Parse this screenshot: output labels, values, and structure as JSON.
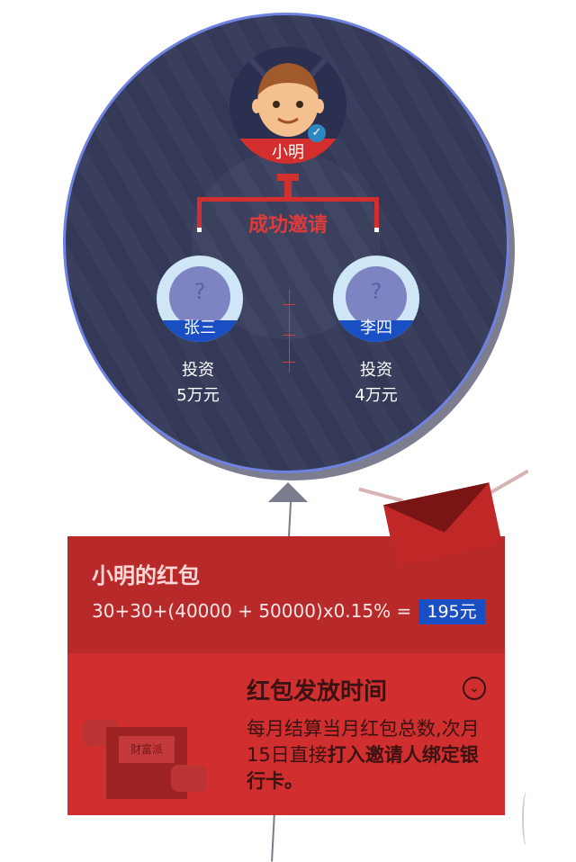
{
  "referrer": {
    "name": "小明"
  },
  "connector_label": "成功邀请",
  "friends": [
    {
      "name": "张三",
      "placeholder": "?",
      "invest_label": "投资",
      "invest_amount": "5万元"
    },
    {
      "name": "李四",
      "placeholder": "?",
      "invest_label": "投资",
      "invest_amount": "4万元"
    }
  ],
  "bonus": {
    "title": "小明的红包",
    "formula": "30+30+(40000 + 50000)x0.15% =",
    "amount": "195元"
  },
  "payout": {
    "title": "红包发放时间",
    "desc_plain": "每月结算当月红包总数,次月15日直接",
    "desc_bold": "打入邀请人绑定银行卡。",
    "envelope_label": "财富派"
  },
  "colors": {
    "accent_red": "#d12f2f",
    "balloon": "#353b5a",
    "blue": "#1a4fc4"
  }
}
